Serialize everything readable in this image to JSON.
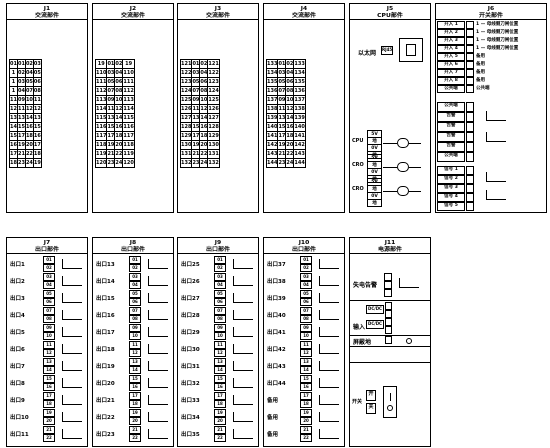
{
  "top_panels": [
    {
      "code": "J1",
      "title": "交流部件",
      "rows": [
        [
          "01",
          "01",
          "02",
          "03"
        ],
        [
          "1",
          "02",
          "04",
          "05"
        ],
        [
          "1",
          "03",
          "05",
          "06"
        ],
        [
          "1",
          "04",
          "07",
          "08"
        ],
        [
          "11",
          "09",
          "10",
          "11"
        ],
        [
          "12",
          "11",
          "12",
          "12"
        ],
        [
          "13",
          "13",
          "14",
          "13"
        ],
        [
          "14",
          "15",
          "16",
          "15"
        ],
        [
          "15",
          "17",
          "18",
          "16"
        ],
        [
          "16",
          "19",
          "20",
          "17"
        ],
        [
          "17",
          "21",
          "22",
          "18"
        ],
        [
          "18",
          "23",
          "24",
          "19"
        ]
      ]
    },
    {
      "code": "J2",
      "title": "交流部件",
      "rows": [
        [
          "19",
          "01",
          "02",
          "19"
        ],
        [
          "110",
          "03",
          "04",
          "110"
        ],
        [
          "111",
          "05",
          "06",
          "111"
        ],
        [
          "112",
          "07",
          "08",
          "112"
        ],
        [
          "113",
          "09",
          "10",
          "113"
        ],
        [
          "114",
          "11",
          "12",
          "114"
        ],
        [
          "115",
          "13",
          "14",
          "115"
        ],
        [
          "116",
          "15",
          "16",
          "116"
        ],
        [
          "117",
          "17",
          "18",
          "117"
        ],
        [
          "118",
          "19",
          "20",
          "118"
        ],
        [
          "119",
          "21",
          "22",
          "119"
        ],
        [
          "120",
          "23",
          "24",
          "120"
        ]
      ]
    },
    {
      "code": "J3",
      "title": "交流部件",
      "rows": [
        [
          "121",
          "01",
          "02",
          "121"
        ],
        [
          "122",
          "03",
          "04",
          "122"
        ],
        [
          "123",
          "05",
          "06",
          "123"
        ],
        [
          "124",
          "07",
          "08",
          "124"
        ],
        [
          "125",
          "09",
          "10",
          "125"
        ],
        [
          "126",
          "11",
          "12",
          "126"
        ],
        [
          "127",
          "13",
          "14",
          "127"
        ],
        [
          "128",
          "15",
          "16",
          "128"
        ],
        [
          "129",
          "17",
          "18",
          "129"
        ],
        [
          "130",
          "19",
          "20",
          "130"
        ],
        [
          "131",
          "21",
          "22",
          "131"
        ],
        [
          "132",
          "23",
          "24",
          "132"
        ]
      ]
    },
    {
      "code": "J4",
      "title": "交流部件",
      "rows": [
        [
          "133",
          "01",
          "02",
          "133"
        ],
        [
          "134",
          "03",
          "04",
          "134"
        ],
        [
          "135",
          "05",
          "06",
          "135"
        ],
        [
          "136",
          "07",
          "08",
          "136"
        ],
        [
          "137",
          "09",
          "10",
          "137"
        ],
        [
          "138",
          "11",
          "12",
          "138"
        ],
        [
          "139",
          "13",
          "14",
          "139"
        ],
        [
          "140",
          "15",
          "16",
          "140"
        ],
        [
          "141",
          "17",
          "18",
          "141"
        ],
        [
          "142",
          "19",
          "20",
          "142"
        ],
        [
          "143",
          "21",
          "22",
          "143"
        ],
        [
          "144",
          "23",
          "24",
          "144"
        ]
      ]
    }
  ],
  "cpu_panel": {
    "code": "J5",
    "title": "CPU部件",
    "main_label": "以太网",
    "port_label": "RJ45",
    "groups": [
      {
        "name": "CPU",
        "cells": [
          "5V",
          "地",
          "0V",
          "地"
        ]
      },
      {
        "name": "CRO",
        "cells": [
          "5V",
          "地",
          "0V",
          "地"
        ]
      },
      {
        "name": "CRO",
        "cells": [
          "5V",
          "地",
          "0V",
          "地"
        ]
      }
    ]
  },
  "switch_panel": {
    "code": "J6",
    "title": "开关部件",
    "inputs": [
      {
        "label": "开入 1",
        "val": "1 — 母线侧刀闸位置"
      },
      {
        "label": "开入 2",
        "val": "1 — 母线侧刀闸位置"
      },
      {
        "label": "开入 3",
        "val": "1 — 母线侧刀闸位置"
      },
      {
        "label": "开入 4",
        "val": "1 — 母线侧刀闸位置"
      },
      {
        "label": "开入 5",
        "val": "备用"
      },
      {
        "label": "开入 6",
        "val": "备用"
      },
      {
        "label": "开入 7",
        "val": "备用"
      },
      {
        "label": "开入 8",
        "val": "备用"
      }
    ],
    "common_label": "公共端",
    "common_val": "公共端",
    "signals": [
      "公共端",
      "告警",
      "告警",
      "告警",
      "告警",
      "公共端"
    ],
    "outputs": [
      "信号 1",
      "信号 2",
      "信号 3",
      "信号 4",
      "信号 5"
    ]
  },
  "bottom_panels": [
    {
      "code": "J7",
      "title": "出口部件",
      "labels": [
        "出口1",
        "出口2",
        "出口3",
        "出口4",
        "出口5",
        "出口6",
        "出口7",
        "出口8",
        "出口9",
        "出口10",
        "出口11"
      ]
    },
    {
      "code": "J8",
      "title": "出口部件",
      "labels": [
        "出口13",
        "出口14",
        "出口15",
        "出口16",
        "出口17",
        "出口18",
        "出口19",
        "出口20",
        "出口21",
        "出口22",
        "出口23"
      ]
    },
    {
      "code": "J9",
      "title": "出口部件",
      "labels": [
        "出口25",
        "出口26",
        "出口27",
        "出口28",
        "出口29",
        "出口30",
        "出口31",
        "出口32",
        "出口33",
        "出口34",
        "出口35"
      ]
    },
    {
      "code": "J10",
      "title": "出口部件",
      "labels": [
        "出口37",
        "出口38",
        "出口39",
        "出口40",
        "出口41",
        "出口42",
        "出口43",
        "出口44",
        "备用",
        "备用",
        "备用"
      ]
    }
  ],
  "bottom_pairs": [
    "01",
    "02",
    "03",
    "04",
    "05",
    "06",
    "07",
    "08",
    "09",
    "10",
    "11",
    "12",
    "13",
    "14",
    "15",
    "16",
    "17",
    "18",
    "19",
    "20",
    "21",
    "22"
  ],
  "power_panel": {
    "code": "J11",
    "title": "电源部件",
    "fail_label": "失电告警",
    "input_label": "输入",
    "rows": [
      "DC/DC",
      "DC/DC"
    ],
    "ground_label": "屏蔽地",
    "switch_label": "开关",
    "on_label": "开",
    "off_label": "关"
  }
}
